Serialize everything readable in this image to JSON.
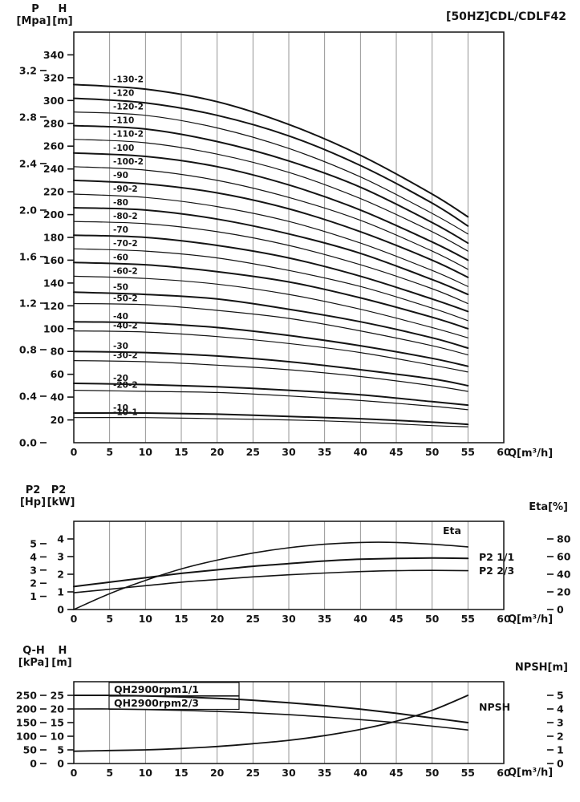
{
  "page": {
    "bg": "#ffffff",
    "ink": "#141414",
    "grid": "#7a7a7a"
  },
  "chart_data": [
    {
      "id": "main-qh",
      "type": "line",
      "title": "[50HZ]CDL/CDLF42",
      "x_unit": "Q[m³/h]",
      "x_range": [
        0,
        60
      ],
      "x_ticks": [
        0,
        5,
        10,
        15,
        20,
        25,
        30,
        35,
        40,
        45,
        50,
        55,
        60
      ],
      "grid": "vertical",
      "axes": {
        "p": {
          "name": "P",
          "unit": "[Mpa]",
          "ticks": [
            "0.0",
            "0.4",
            "0.8",
            "1.2",
            "1.6",
            "2.0",
            "2.4",
            "2.8",
            "3.2"
          ]
        },
        "h": {
          "name": "H",
          "unit": "[m]",
          "range": [
            0,
            360
          ],
          "ticks": [
            20,
            40,
            60,
            80,
            100,
            120,
            140,
            160,
            180,
            200,
            220,
            240,
            260,
            280,
            300,
            320,
            340
          ]
        }
      },
      "x": [
        0,
        10,
        20,
        30,
        40,
        50,
        55
      ],
      "series": [
        {
          "label": "-130-2",
          "lw": 2,
          "values": [
            314,
            310,
            299,
            279,
            252,
            218,
            198
          ]
        },
        {
          "label": "-120",
          "lw": 2,
          "values": [
            302,
            298,
            287,
            269,
            243,
            210,
            190
          ]
        },
        {
          "label": "-120-2",
          "lw": 1.2,
          "values": [
            290,
            287,
            276,
            258,
            233,
            201,
            183
          ]
        },
        {
          "label": "-110",
          "lw": 2,
          "values": [
            278,
            275,
            264,
            247,
            224,
            193,
            175
          ]
        },
        {
          "label": "-110-2",
          "lw": 1.2,
          "values": [
            266,
            263,
            253,
            237,
            214,
            185,
            168
          ]
        },
        {
          "label": "-100",
          "lw": 2,
          "values": [
            254,
            251,
            242,
            226,
            204,
            176,
            160
          ]
        },
        {
          "label": "-100-2",
          "lw": 1.2,
          "values": [
            242,
            239,
            230,
            215,
            195,
            168,
            152
          ]
        },
        {
          "label": "-90",
          "lw": 2,
          "values": [
            230,
            227,
            219,
            205,
            185,
            160,
            145
          ]
        },
        {
          "label": "-90-2",
          "lw": 1.2,
          "values": [
            218,
            215,
            207,
            194,
            175,
            151,
            137
          ]
        },
        {
          "label": "-80",
          "lw": 2,
          "values": [
            206,
            204,
            196,
            183,
            166,
            143,
            130
          ]
        },
        {
          "label": "-80-2",
          "lw": 1.2,
          "values": [
            194,
            192,
            185,
            173,
            156,
            135,
            122
          ]
        },
        {
          "label": "-70",
          "lw": 2,
          "values": [
            182,
            180,
            173,
            162,
            146,
            126,
            115
          ]
        },
        {
          "label": "-70-2",
          "lw": 1.2,
          "values": [
            170,
            168,
            162,
            151,
            137,
            118,
            107
          ]
        },
        {
          "label": "-60",
          "lw": 2,
          "values": [
            158,
            156,
            150,
            141,
            127,
            110,
            100
          ]
        },
        {
          "label": "-60-2",
          "lw": 1.2,
          "values": [
            146,
            144,
            139,
            130,
            117,
            101,
            92
          ]
        },
        {
          "label": "-50",
          "lw": 2,
          "values": [
            132,
            130,
            126,
            117,
            106,
            92,
            83
          ]
        },
        {
          "label": "-50-2",
          "lw": 1.2,
          "values": [
            122,
            121,
            116,
            109,
            98,
            85,
            77
          ]
        },
        {
          "label": "-40",
          "lw": 2,
          "values": [
            106,
            105,
            101,
            94,
            85,
            74,
            67
          ]
        },
        {
          "label": "-40-2",
          "lw": 1.2,
          "values": [
            98,
            97,
            93,
            87,
            79,
            68,
            62
          ]
        },
        {
          "label": "-30",
          "lw": 2,
          "values": [
            80,
            79,
            76,
            71,
            64,
            56,
            50
          ]
        },
        {
          "label": "-30-2",
          "lw": 1.2,
          "values": [
            72,
            71,
            68,
            64,
            58,
            50,
            45
          ]
        },
        {
          "label": "-20",
          "lw": 2,
          "values": [
            52,
            51,
            49,
            46,
            42,
            36,
            33
          ]
        },
        {
          "label": "-20-2",
          "lw": 1.2,
          "values": [
            46,
            45,
            44,
            41,
            37,
            32,
            29
          ]
        },
        {
          "label": "-10",
          "lw": 2,
          "values": [
            26,
            26,
            25,
            23,
            21,
            18,
            16
          ]
        },
        {
          "label": "-10-1",
          "lw": 1.2,
          "values": [
            22,
            22,
            21,
            20,
            18,
            15,
            14
          ]
        }
      ]
    },
    {
      "id": "power-eta",
      "type": "line",
      "x_unit": "Q[m³/h]",
      "x_range": [
        0,
        60
      ],
      "x_ticks": [
        0,
        5,
        10,
        15,
        20,
        25,
        30,
        35,
        40,
        45,
        50,
        55,
        60
      ],
      "grid": "vertical",
      "axes": {
        "hp": {
          "name": "P2",
          "unit": "[Hp]",
          "ticks": [
            1,
            2,
            3,
            4,
            5
          ]
        },
        "kw": {
          "name": "P2",
          "unit": "[kW]",
          "range": [
            0,
            5
          ],
          "ticks": [
            0,
            1,
            2,
            3,
            4
          ]
        },
        "eta": {
          "name": "Eta",
          "unit": "Eta[%]",
          "range": [
            0,
            100
          ],
          "ticks": [
            0,
            20,
            40,
            60,
            80
          ]
        }
      },
      "x": [
        0,
        5,
        10,
        15,
        20,
        25,
        30,
        35,
        40,
        45,
        50,
        55
      ],
      "series": [
        {
          "name": "Eta",
          "axis": "eta",
          "lw": 1.6,
          "values": [
            0,
            18,
            33,
            46,
            56,
            64,
            70,
            74,
            76,
            76,
            74,
            71
          ]
        },
        {
          "name": "P2 1/1",
          "axis": "kw",
          "lw": 2,
          "values": [
            1.3,
            1.55,
            1.8,
            2.05,
            2.25,
            2.45,
            2.6,
            2.75,
            2.85,
            2.9,
            2.92,
            2.9
          ]
        },
        {
          "name": "P2 2/3",
          "axis": "kw",
          "lw": 1.6,
          "values": [
            0.95,
            1.15,
            1.35,
            1.55,
            1.7,
            1.85,
            1.97,
            2.07,
            2.15,
            2.2,
            2.22,
            2.2
          ]
        }
      ]
    },
    {
      "id": "qh-npsh",
      "type": "line",
      "x_unit": "Q[m³/h]",
      "x_range": [
        0,
        60
      ],
      "x_ticks": [
        0,
        5,
        10,
        15,
        20,
        25,
        30,
        35,
        40,
        45,
        50,
        55,
        60
      ],
      "grid": "vertical",
      "axes": {
        "kpa": {
          "name": "Q-H",
          "unit": "[kPa]",
          "ticks": [
            0,
            50,
            100,
            150,
            200,
            250
          ]
        },
        "h": {
          "name": "H",
          "unit": "[m]",
          "range": [
            0,
            30
          ],
          "ticks": [
            0,
            5,
            10,
            15,
            20,
            25
          ]
        },
        "npsh": {
          "name": "NPSH",
          "unit": "NPSH[m]",
          "range": [
            0,
            6
          ],
          "ticks": [
            0,
            1,
            2,
            3,
            4,
            5
          ]
        }
      },
      "x": [
        0,
        5,
        10,
        15,
        20,
        25,
        30,
        35,
        40,
        45,
        50,
        55
      ],
      "series": [
        {
          "name": "QH2900rpm1/1",
          "axis": "h",
          "lw": 2,
          "boxed": true,
          "values": [
            25,
            25,
            24.8,
            24.4,
            23.9,
            23.2,
            22.3,
            21.2,
            19.9,
            18.4,
            16.7,
            15
          ]
        },
        {
          "name": "QH2900rpm2/3",
          "axis": "h",
          "lw": 1.6,
          "boxed": true,
          "values": [
            20,
            20,
            19.8,
            19.5,
            19.1,
            18.6,
            17.9,
            17.1,
            16.1,
            15,
            13.7,
            12.3
          ]
        },
        {
          "name": "NPSH",
          "axis": "npsh",
          "lw": 1.8,
          "values": [
            0.9,
            0.95,
            1.0,
            1.1,
            1.25,
            1.45,
            1.7,
            2.05,
            2.5,
            3.1,
            3.9,
            5.0
          ]
        }
      ]
    }
  ]
}
